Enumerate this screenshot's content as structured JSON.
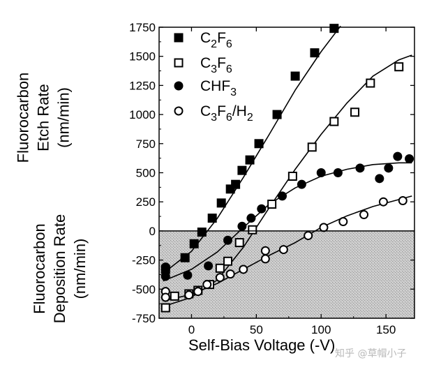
{
  "chart_data": {
    "type": "scatter",
    "title": "",
    "ylabel_top": [
      "Fluorocarbon",
      "Etch Rate",
      "(nm/min)"
    ],
    "ylabel_bottom": [
      "Fluorocarbon",
      "Deposition Rate",
      "(nm/min)"
    ],
    "xlabel": "Self-Bias Voltage (-V)",
    "xlim": [
      -25,
      172
    ],
    "ylim": [
      -750,
      1750
    ],
    "xticks": [
      0,
      50,
      100,
      150
    ],
    "yticks": [
      -750,
      -500,
      -250,
      0,
      250,
      500,
      750,
      1000,
      1250,
      1500,
      1750
    ],
    "xtick_labels": [
      "0",
      "50",
      "100",
      "150"
    ],
    "ytick_labels": [
      "-750",
      "-500",
      "-250",
      "0",
      "250",
      "500",
      "750",
      "1000",
      "1250",
      "1500",
      "1750"
    ],
    "shaded_region": {
      "from": -750,
      "to": 0,
      "meaning": "deposition"
    },
    "series": [
      {
        "name": "C2F6",
        "legend_base": [
          "C",
          "2",
          "F",
          "6"
        ],
        "marker": "filled-square",
        "points": [
          [
            -20,
            -330
          ],
          [
            -5,
            -230
          ],
          [
            2,
            -110
          ],
          [
            8,
            -10
          ],
          [
            16,
            110
          ],
          [
            23,
            240
          ],
          [
            30,
            360
          ],
          [
            34,
            400
          ],
          [
            39,
            520
          ],
          [
            45,
            610
          ],
          [
            52,
            750
          ],
          [
            66,
            1000
          ],
          [
            80,
            1330
          ],
          [
            95,
            1530
          ],
          [
            110,
            1740
          ]
        ],
        "fit": [
          [
            -22,
            -365
          ],
          [
            0,
            -175
          ],
          [
            20,
            110
          ],
          [
            40,
            460
          ],
          [
            60,
            830
          ],
          [
            80,
            1210
          ],
          [
            100,
            1540
          ],
          [
            115,
            1760
          ]
        ]
      },
      {
        "name": "C3F6",
        "legend_base": [
          "C",
          "3",
          "F",
          "6"
        ],
        "marker": "open-square",
        "points": [
          [
            -20,
            -660
          ],
          [
            -13,
            -560
          ],
          [
            -2,
            -540
          ],
          [
            5,
            -510
          ],
          [
            14,
            -460
          ],
          [
            22,
            -320
          ],
          [
            28,
            -260
          ],
          [
            37,
            -100
          ],
          [
            47,
            10
          ],
          [
            62,
            230
          ],
          [
            78,
            470
          ],
          [
            93,
            720
          ],
          [
            110,
            940
          ],
          [
            126,
            1020
          ],
          [
            138,
            1270
          ],
          [
            160,
            1410
          ]
        ],
        "fit": [
          [
            -22,
            -650
          ],
          [
            0,
            -570
          ],
          [
            20,
            -420
          ],
          [
            40,
            -140
          ],
          [
            60,
            200
          ],
          [
            80,
            530
          ],
          [
            100,
            830
          ],
          [
            120,
            1100
          ],
          [
            140,
            1330
          ],
          [
            160,
            1470
          ],
          [
            170,
            1510
          ]
        ]
      },
      {
        "name": "CHF3",
        "legend_base": [
          "CHF",
          "3"
        ],
        "marker": "filled-circle",
        "points": [
          [
            -20,
            -390
          ],
          [
            -20,
            -330
          ],
          [
            -20,
            -310
          ],
          [
            -3,
            -380
          ],
          [
            13,
            -300
          ],
          [
            28,
            -80
          ],
          [
            39,
            40
          ],
          [
            46,
            110
          ],
          [
            54,
            190
          ],
          [
            70,
            300
          ],
          [
            85,
            400
          ],
          [
            100,
            500
          ],
          [
            113,
            500
          ],
          [
            130,
            540
          ],
          [
            145,
            450
          ],
          [
            152,
            540
          ],
          [
            159,
            640
          ],
          [
            168,
            620
          ]
        ],
        "fit": [
          [
            -22,
            -430
          ],
          [
            0,
            -330
          ],
          [
            20,
            -180
          ],
          [
            40,
            30
          ],
          [
            60,
            230
          ],
          [
            80,
            370
          ],
          [
            100,
            470
          ],
          [
            120,
            530
          ],
          [
            140,
            570
          ],
          [
            160,
            585
          ],
          [
            170,
            585
          ]
        ]
      },
      {
        "name": "C3F6/H2",
        "legend_base": [
          "C",
          "3",
          "F",
          "6",
          "/H",
          "2"
        ],
        "marker": "open-circle",
        "points": [
          [
            -20,
            -520
          ],
          [
            -20,
            -570
          ],
          [
            -2,
            -550
          ],
          [
            5,
            -520
          ],
          [
            12,
            -460
          ],
          [
            22,
            -400
          ],
          [
            30,
            -370
          ],
          [
            40,
            -330
          ],
          [
            57,
            -240
          ],
          [
            57,
            -170
          ],
          [
            71,
            -160
          ],
          [
            90,
            -40
          ],
          [
            102,
            30
          ],
          [
            117,
            80
          ],
          [
            133,
            140
          ],
          [
            148,
            250
          ],
          [
            163,
            260
          ]
        ],
        "fit": [
          [
            -22,
            -600
          ],
          [
            0,
            -545
          ],
          [
            20,
            -450
          ],
          [
            40,
            -330
          ],
          [
            60,
            -210
          ],
          [
            80,
            -100
          ],
          [
            100,
            30
          ],
          [
            120,
            130
          ],
          [
            140,
            210
          ],
          [
            160,
            270
          ],
          [
            170,
            300
          ]
        ]
      }
    ]
  },
  "watermark": "知乎 @草帽小子"
}
